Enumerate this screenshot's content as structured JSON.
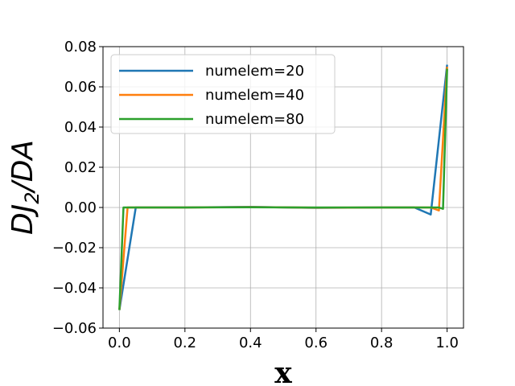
{
  "chart_data": {
    "type": "line",
    "title": "",
    "xlabel": "x",
    "ylabel": "DJ2/DA",
    "ylabel_parts": {
      "base": "DJ",
      "sub": "2",
      "tail": "/DA"
    },
    "xlim": [
      -0.05,
      1.05
    ],
    "ylim": [
      -0.06,
      0.08
    ],
    "grid": true,
    "legend_placement": "top-left",
    "x_ticks": [
      0.0,
      0.2,
      0.4,
      0.6,
      0.8,
      1.0
    ],
    "x_tick_labels": [
      "0.0",
      "0.2",
      "0.4",
      "0.6",
      "0.8",
      "1.0"
    ],
    "y_ticks": [
      -0.06,
      -0.04,
      -0.02,
      0.0,
      0.02,
      0.04,
      0.06,
      0.08
    ],
    "y_tick_labels": [
      "−0.06",
      "−0.04",
      "−0.02",
      "0.00",
      "0.02",
      "0.04",
      "0.06",
      "0.08"
    ],
    "series": [
      {
        "name": "numelem=20",
        "color": "#1f77b4",
        "x": [
          0.0,
          0.05,
          0.2,
          0.4,
          0.6,
          0.8,
          0.9,
          0.95,
          1.0
        ],
        "y": [
          -0.051,
          0.0,
          0.0,
          0.0003,
          -0.0002,
          0.0,
          0.0,
          -0.0035,
          0.071
        ]
      },
      {
        "name": "numelem=40",
        "color": "#ff7f0e",
        "x": [
          0.0,
          0.025,
          0.2,
          0.4,
          0.6,
          0.8,
          0.95,
          0.975,
          1.0
        ],
        "y": [
          -0.051,
          0.0,
          0.0,
          0.0002,
          -0.0001,
          0.0,
          0.0,
          -0.0015,
          0.07
        ]
      },
      {
        "name": "numelem=80",
        "color": "#2ca02c",
        "x": [
          0.0,
          0.0125,
          0.2,
          0.4,
          0.6,
          0.8,
          0.975,
          0.9875,
          1.0
        ],
        "y": [
          -0.051,
          0.0,
          0.0,
          0.0001,
          0.0,
          0.0,
          0.0,
          -0.0007,
          0.069
        ]
      }
    ]
  }
}
